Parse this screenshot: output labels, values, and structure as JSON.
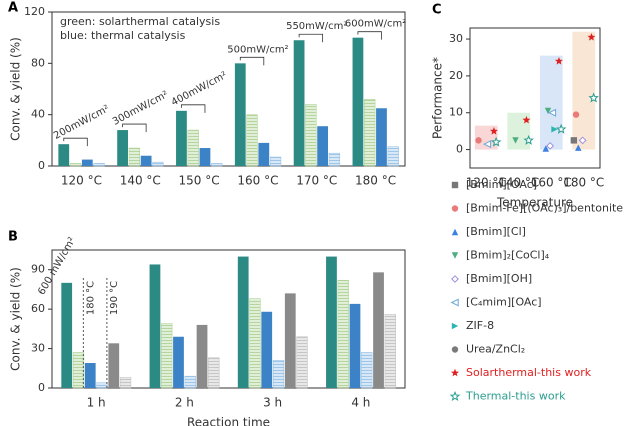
{
  "chart_data": [
    {
      "type": "bar",
      "label": "A",
      "ylabel": "Conv. & yield (%)",
      "categories": [
        "120 °C",
        "140 °C",
        "150 °C",
        "160 °C",
        "170 °C",
        "180 °C"
      ],
      "series": [
        {
          "color": "#2b8a83",
          "values": [
            17,
            28,
            43,
            80,
            98,
            100
          ]
        },
        {
          "color": "#a8cf8e",
          "hatched": true,
          "values": [
            2,
            14,
            28,
            40,
            48,
            52
          ]
        },
        {
          "color": "#3b82c6",
          "values": [
            5,
            8,
            14,
            18,
            31,
            45
          ]
        },
        {
          "color": "#8fbde6",
          "hatched": true,
          "values": [
            2,
            3,
            2,
            7,
            10,
            15
          ]
        }
      ],
      "notes": [
        "green: solarthermal catalysis",
        "blue: thermal catalysis"
      ],
      "annotations": [
        "200mW/cm²",
        "300mW/cm²",
        "400mW/cm²",
        "500mW/cm²",
        "550mW/cm²",
        "600mW/cm²"
      ],
      "ylim": [
        0,
        120
      ],
      "yticks": [
        0,
        40,
        80,
        120
      ]
    },
    {
      "type": "bar",
      "label": "B",
      "ylabel": "Conv. & yield (%)",
      "xlabel": "Reaction time",
      "categories": [
        "1 h",
        "2 h",
        "3 h",
        "4 h"
      ],
      "series": [
        {
          "color": "#2b8a83",
          "values": [
            80,
            94,
            100,
            100
          ]
        },
        {
          "color": "#a8cf8e",
          "hatched": true,
          "values": [
            27,
            49,
            68,
            82
          ]
        },
        {
          "color": "#3b82c6",
          "values": [
            19,
            39,
            58,
            64
          ]
        },
        {
          "color": "#8fbde6",
          "hatched": true,
          "values": [
            4,
            9,
            21,
            27
          ]
        },
        {
          "color": "#8a8a8a",
          "values": [
            34,
            48,
            72,
            88
          ]
        },
        {
          "color": "#bdbdbd",
          "hatched": true,
          "values": [
            8,
            23,
            39,
            56
          ]
        }
      ],
      "annotations": [
        "600 mW/cm²",
        "180 °C",
        "190 °C"
      ],
      "ylim": [
        0,
        105
      ],
      "yticks": [
        0,
        30,
        60,
        90
      ]
    },
    {
      "type": "scatter",
      "label": "C",
      "ylabel": "Performance*",
      "xlabel": "Temperature",
      "categories": [
        "120 °C",
        "140 °C",
        "160 °C",
        "180 °C"
      ],
      "bands": {
        "values": [
          6.5,
          10,
          25.5,
          32
        ],
        "colors": [
          "#f7c6c6",
          "#cdeccf",
          "#c9dcf3",
          "#f7dcc2"
        ]
      },
      "series": [
        {
          "name": "[Bmim][OAc]",
          "color": "#777777",
          "marker": "square",
          "values": [
            null,
            null,
            null,
            2.5
          ]
        },
        {
          "name": "[Bmim-Fe][(OAc)₃]/bentonite",
          "color": "#e87a7a",
          "marker": "circle",
          "values": [
            2.5,
            null,
            null,
            9.5
          ]
        },
        {
          "name": "[Bmim][Cl]",
          "color": "#3b82e0",
          "marker": "triangle-up",
          "values": [
            null,
            null,
            0.3,
            0.5
          ]
        },
        {
          "name": "[Bmim]₂[CoCl]₄",
          "color": "#4cae80",
          "marker": "triangle-down",
          "values": [
            null,
            2.5,
            10.5,
            null
          ]
        },
        {
          "name": "[Bmim][OH]",
          "color": "#9f8fe0",
          "marker": "diamond",
          "hollow": true,
          "values": [
            null,
            null,
            1,
            2.5
          ]
        },
        {
          "name": "[C₄mim][OAc]",
          "color": "#6aa6d8",
          "marker": "triangle-left",
          "hollow": true,
          "values": [
            1.5,
            null,
            10,
            null
          ]
        },
        {
          "name": "ZIF-8",
          "color": "#2bb5b0",
          "marker": "triangle-right",
          "values": [
            null,
            null,
            5.5,
            null
          ]
        },
        {
          "name": "Urea/ZnCl₂",
          "color": "#7a7a7a",
          "marker": "circle",
          "values": [
            null,
            null,
            null,
            null
          ]
        },
        {
          "name": "Solarthermal-this work",
          "color": "#e02020",
          "marker": "star",
          "label_colored": true,
          "values": [
            5,
            8,
            24,
            30.5
          ]
        },
        {
          "name": "Thermal-this work",
          "color": "#2a9d8f",
          "marker": "star",
          "hollow": true,
          "label_colored": true,
          "values": [
            2,
            2.5,
            5.5,
            14
          ]
        }
      ],
      "ylim": [
        -5,
        33
      ],
      "yticks": [
        0,
        10,
        20,
        30
      ]
    }
  ]
}
